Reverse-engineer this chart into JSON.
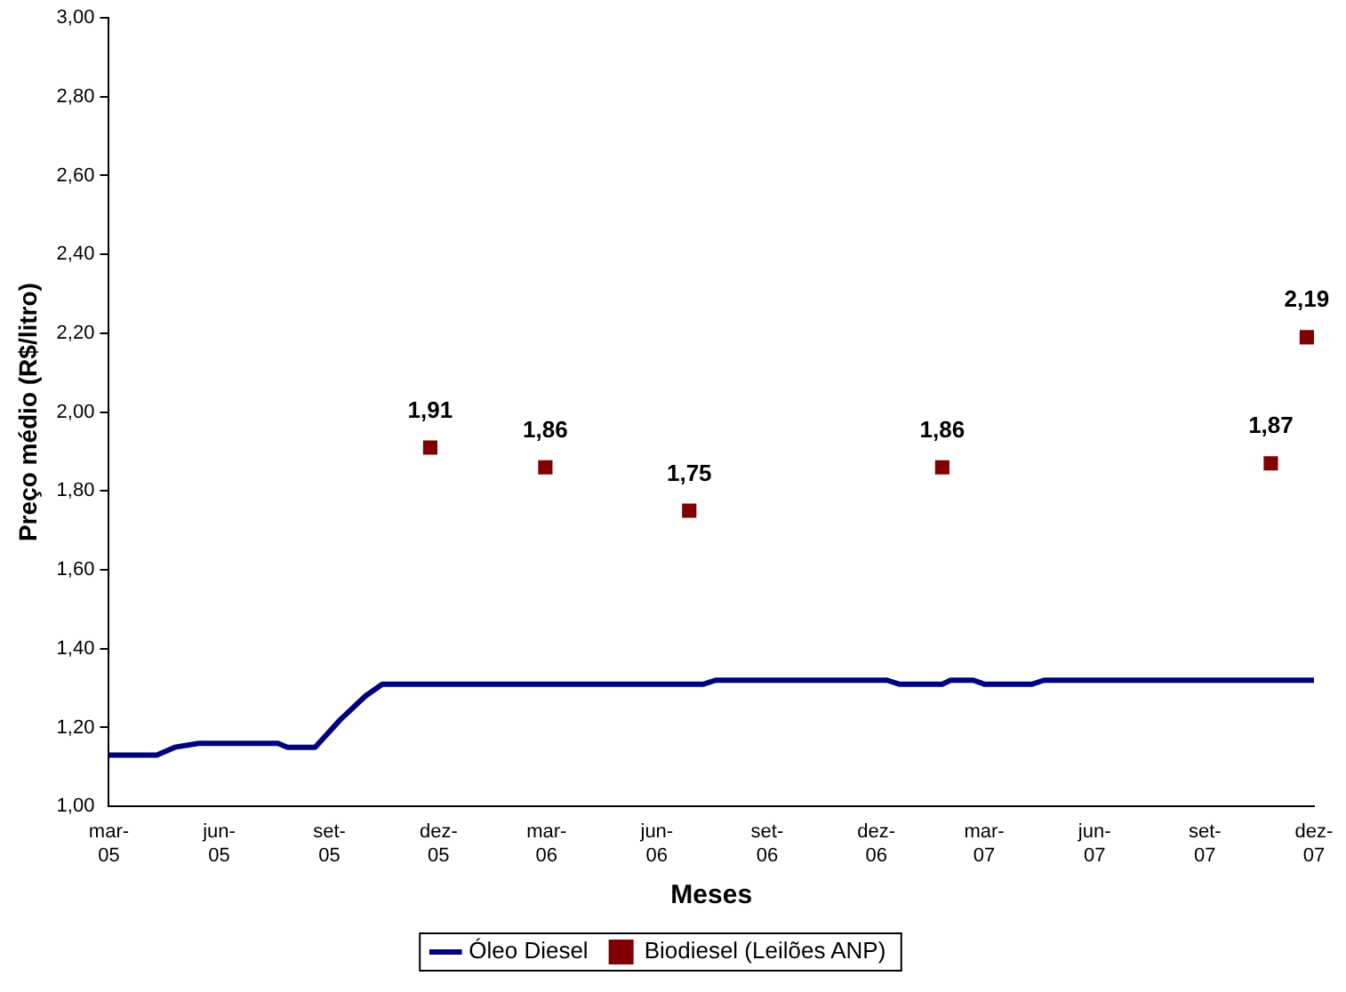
{
  "chart_data": {
    "type": "line",
    "xlabel": "Meses",
    "ylabel": "Preço médio (R$/litro)",
    "xlim": [
      "2005-03-01",
      "2007-12-01"
    ],
    "xticks": [
      {
        "value": "2005-03-01",
        "label": "mar-05"
      },
      {
        "value": "2005-06-01",
        "label": "jun-05"
      },
      {
        "value": "2005-09-01",
        "label": "set-05"
      },
      {
        "value": "2005-12-01",
        "label": "dez-05"
      },
      {
        "value": "2006-03-01",
        "label": "mar-06"
      },
      {
        "value": "2006-06-01",
        "label": "jun-06"
      },
      {
        "value": "2006-09-01",
        "label": "set-06"
      },
      {
        "value": "2006-12-01",
        "label": "dez-06"
      },
      {
        "value": "2007-03-01",
        "label": "mar-07"
      },
      {
        "value": "2007-06-01",
        "label": "jun-07"
      },
      {
        "value": "2007-09-01",
        "label": "set-07"
      },
      {
        "value": "2007-12-01",
        "label": "dez-07"
      }
    ],
    "ylim": [
      1,
      3
    ],
    "yticks": [
      {
        "value": 1,
        "label": "1,00"
      },
      {
        "value": 1.2,
        "label": "1,20"
      },
      {
        "value": 1.4,
        "label": "1,40"
      },
      {
        "value": 1.6,
        "label": "1,60"
      },
      {
        "value": 1.8,
        "label": "1,80"
      },
      {
        "value": 2,
        "label": "2,00"
      },
      {
        "value": 2.2,
        "label": "2,20"
      },
      {
        "value": 2.4,
        "label": "2,40"
      },
      {
        "value": 2.6,
        "label": "2,60"
      },
      {
        "value": 2.8,
        "label": "2,80"
      },
      {
        "value": 3,
        "label": "3,00"
      }
    ],
    "grid": false,
    "legend": "bottom",
    "series": [
      {
        "name": "Óleo Diesel",
        "type": "line",
        "color": "#000080",
        "marker": "none",
        "line_style": "solid",
        "x": [
          "2005-03-01",
          "2005-04-10",
          "2005-04-25",
          "2005-05-15",
          "2005-07-20",
          "2005-07-28",
          "2005-08-20",
          "2005-09-10",
          "2005-10-01",
          "2005-10-15",
          "2006-07-10",
          "2006-07-20",
          "2006-12-10",
          "2006-12-20",
          "2007-01-25",
          "2007-02-01",
          "2007-02-20",
          "2007-03-01",
          "2007-04-10",
          "2007-04-20",
          "2007-12-01"
        ],
        "values": [
          1.13,
          1.13,
          1.15,
          1.16,
          1.16,
          1.15,
          1.15,
          1.22,
          1.28,
          1.31,
          1.31,
          1.32,
          1.32,
          1.31,
          1.31,
          1.32,
          1.32,
          1.31,
          1.31,
          1.32,
          1.32
        ]
      },
      {
        "name": "Biodiesel (Leilões ANP)",
        "type": "scatter",
        "color": "#800000",
        "marker": "square",
        "x": [
          "2005-11-24",
          "2006-02-28",
          "2006-06-28",
          "2007-01-25",
          "2007-10-26",
          "2007-11-25"
        ],
        "values": [
          1.91,
          1.86,
          1.75,
          1.86,
          1.87,
          2.19
        ],
        "value_labels": [
          "1,91",
          "1,86",
          "1,75",
          "1,86",
          "1,87",
          "2,19"
        ]
      }
    ]
  }
}
